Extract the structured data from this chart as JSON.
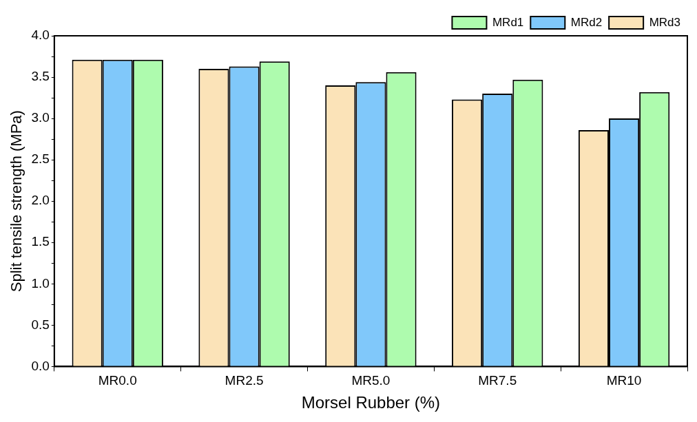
{
  "chart_data": {
    "type": "bar",
    "xlabel": "Morsel Rubber (%)",
    "ylabel": "Split tensile strength (MPa)",
    "categories": [
      "MR0.0",
      "MR2.5",
      "MR5.0",
      "MR7.5",
      "MR10"
    ],
    "series": [
      {
        "name": "MRd3",
        "color": "#fbe3b8",
        "values": [
          3.71,
          3.6,
          3.4,
          3.23,
          2.86
        ]
      },
      {
        "name": "MRd2",
        "color": "#80c8fa",
        "values": [
          3.71,
          3.63,
          3.44,
          3.3,
          3.0
        ]
      },
      {
        "name": "MRd1",
        "color": "#aefbae",
        "values": [
          3.71,
          3.69,
          3.56,
          3.47,
          3.32
        ]
      }
    ],
    "ylim": [
      0,
      4
    ],
    "yticks": [
      {
        "value": 0,
        "label": "0.0"
      },
      {
        "value": 0.25,
        "label": null
      },
      {
        "value": 0.5,
        "label": "0.5"
      },
      {
        "value": 0.75,
        "label": null
      },
      {
        "value": 1,
        "label": "1.0"
      },
      {
        "value": 1.25,
        "label": null
      },
      {
        "value": 1.5,
        "label": "1.5"
      },
      {
        "value": 1.75,
        "label": null
      },
      {
        "value": 2,
        "label": "2.0"
      },
      {
        "value": 2.25,
        "label": null
      },
      {
        "value": 2.5,
        "label": "2.5"
      },
      {
        "value": 2.75,
        "label": null
      },
      {
        "value": 3,
        "label": "3.0"
      },
      {
        "value": 3.25,
        "label": null
      },
      {
        "value": 3.5,
        "label": "3.5"
      },
      {
        "value": 3.75,
        "label": null
      },
      {
        "value": 4,
        "label": "4.0"
      }
    ],
    "grid": false,
    "legend": "top right"
  }
}
